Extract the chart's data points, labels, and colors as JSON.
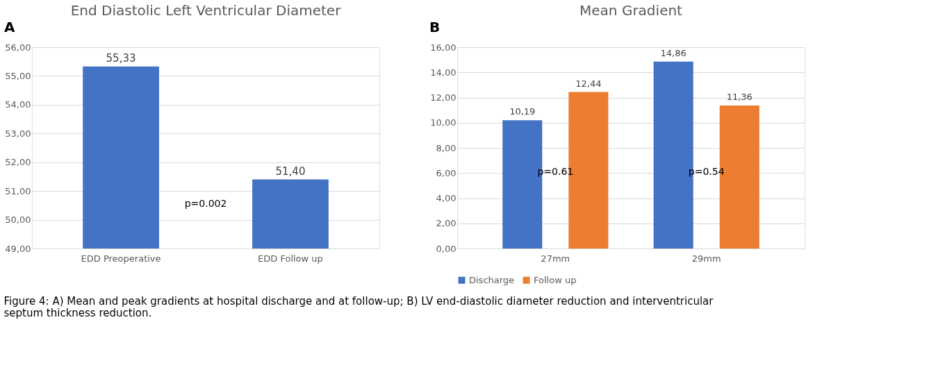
{
  "chart_data": [
    {
      "type": "bar",
      "title": "End Diastolic Left Ventricular Diameter",
      "categories": [
        "EDD Preoperative",
        "EDD Follow up"
      ],
      "values": [
        55.33,
        51.4
      ],
      "color": "#4472c4",
      "value_labels": [
        "55,33",
        "51,40"
      ],
      "ylim": [
        49,
        56
      ],
      "yticks": [
        {
          "value": 49,
          "label": "49,00"
        },
        {
          "value": 50,
          "label": "50,00"
        },
        {
          "value": 51,
          "label": "51,00"
        },
        {
          "value": 52,
          "label": "52,00"
        },
        {
          "value": 53,
          "label": "53,00"
        },
        {
          "value": 54,
          "label": "54,00"
        },
        {
          "value": 55,
          "label": "55,00"
        },
        {
          "value": 56,
          "label": "56,00"
        }
      ],
      "grid": "y",
      "legend": false,
      "annotations": [
        "A",
        "p=0.002",
        "Figure 4: A) Mean and peak gradients at hospital discharge and at follow-up; B) LV end-diastolic diameter reduction and interventricular septum thickness reduction."
      ]
    },
    {
      "type": "bar",
      "title": "Mean Gradient",
      "categories": [
        "27mm",
        "29mm"
      ],
      "series": [
        {
          "name": "Discharge",
          "color": "#4472c4",
          "values": [
            10.19,
            14.86
          ],
          "value_labels": [
            "10,19",
            "14,86"
          ]
        },
        {
          "name": "Follow up",
          "color": "#ed7d31",
          "values": [
            12.44,
            11.36
          ],
          "value_labels": [
            "12,44",
            "11,36"
          ]
        }
      ],
      "ylim": [
        0,
        16
      ],
      "yticks": [
        {
          "value": 0,
          "label": "0,00"
        },
        {
          "value": 2,
          "label": "2,00"
        },
        {
          "value": 4,
          "label": "4,00"
        },
        {
          "value": 6,
          "label": "6,00"
        },
        {
          "value": 8,
          "label": "8,00"
        },
        {
          "value": 10,
          "label": "10,00"
        },
        {
          "value": 12,
          "label": "12,00"
        },
        {
          "value": 14,
          "label": "14,00"
        },
        {
          "value": 16,
          "label": "16,00"
        }
      ],
      "grid": "y",
      "legend": "bottom",
      "annotations": [
        "B",
        "p=0.61",
        "p=0.54"
      ]
    }
  ]
}
